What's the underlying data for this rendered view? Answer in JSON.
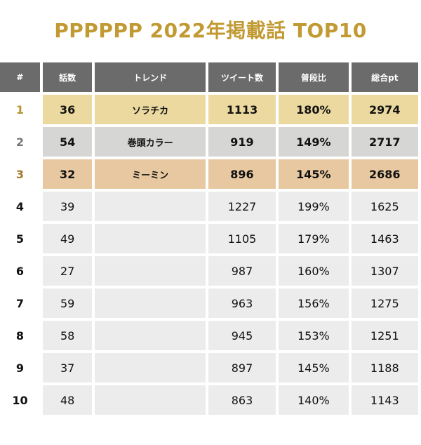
{
  "title": "PPPPPP 2022年掲載話 TOP10",
  "chart_data": {
    "type": "table",
    "columns": [
      "#",
      "話数",
      "トレンド",
      "ツイート数",
      "普段比",
      "総合pt"
    ],
    "rows": [
      {
        "rank": "1",
        "ep": "36",
        "trend": "ソラチカ",
        "tweets": "1113",
        "ratio": "180%",
        "pt": "2974"
      },
      {
        "rank": "2",
        "ep": "54",
        "trend": "巻頭カラー",
        "tweets": "919",
        "ratio": "149%",
        "pt": "2717"
      },
      {
        "rank": "3",
        "ep": "32",
        "trend": "ミーミン",
        "tweets": "896",
        "ratio": "145%",
        "pt": "2686"
      },
      {
        "rank": "4",
        "ep": "39",
        "trend": "",
        "tweets": "1227",
        "ratio": "199%",
        "pt": "1625"
      },
      {
        "rank": "5",
        "ep": "49",
        "trend": "",
        "tweets": "1105",
        "ratio": "179%",
        "pt": "1463"
      },
      {
        "rank": "6",
        "ep": "27",
        "trend": "",
        "tweets": "987",
        "ratio": "160%",
        "pt": "1307"
      },
      {
        "rank": "7",
        "ep": "59",
        "trend": "",
        "tweets": "963",
        "ratio": "156%",
        "pt": "1275"
      },
      {
        "rank": "8",
        "ep": "58",
        "trend": "",
        "tweets": "945",
        "ratio": "153%",
        "pt": "1251"
      },
      {
        "rank": "9",
        "ep": "37",
        "trend": "",
        "tweets": "897",
        "ratio": "145%",
        "pt": "1188"
      },
      {
        "rank": "10",
        "ep": "48",
        "trend": "",
        "tweets": "863",
        "ratio": "140%",
        "pt": "1143"
      }
    ]
  },
  "colors": {
    "title": "#c29a33",
    "header_bg": "#6b6b6b",
    "gold_row": "#ecd9a0",
    "silver_row": "#d6d6d4",
    "bronze_row": "#e8c8a0",
    "plain_row": "#ececec"
  }
}
